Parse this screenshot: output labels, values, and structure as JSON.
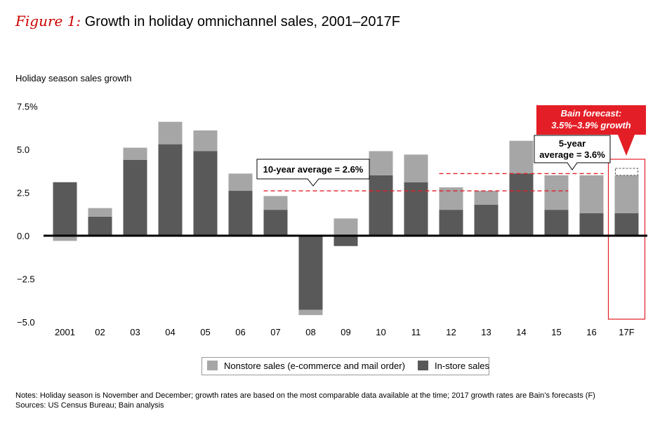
{
  "figure_label": "Figure 1:",
  "title": "Growth in holiday omnichannel sales, 2001–2017F",
  "chart_data": {
    "type": "bar",
    "stacked": true,
    "ylabel": "Holiday season sales growth",
    "ylim": [
      -5.0,
      7.5
    ],
    "yticks": [
      7.5,
      5.0,
      2.5,
      0.0,
      -2.5,
      -5.0
    ],
    "ytick_labels": [
      "7.5%",
      "5.0",
      "2.5",
      "0.0",
      "−2.5",
      "−5.0"
    ],
    "categories": [
      "2001",
      "02",
      "03",
      "04",
      "05",
      "06",
      "07",
      "08",
      "09",
      "10",
      "11",
      "12",
      "13",
      "14",
      "15",
      "16",
      "17F"
    ],
    "series": [
      {
        "name": "In-store sales",
        "color": "#595959",
        "values": [
          3.1,
          1.1,
          4.4,
          5.3,
          4.9,
          2.6,
          1.5,
          -4.3,
          -0.6,
          3.5,
          3.1,
          1.5,
          1.8,
          3.6,
          1.5,
          1.3,
          1.3
        ]
      },
      {
        "name": "Nonstore sales (e-commerce and mail order)",
        "color": "#a6a6a6",
        "values": [
          -0.3,
          0.5,
          0.7,
          1.3,
          1.2,
          1.0,
          0.8,
          -0.3,
          1.0,
          1.4,
          1.6,
          1.3,
          0.8,
          1.9,
          2.0,
          2.2,
          2.2
        ]
      }
    ],
    "forecast_extra": 0.4,
    "averages": [
      {
        "label": "10-year average = 2.6%",
        "value": 2.6,
        "from": "07",
        "to": "15"
      },
      {
        "label_lines": [
          "5-year",
          "average = 3.6%"
        ],
        "value": 3.6,
        "from": "12",
        "to": "16"
      }
    ],
    "forecast_callout": {
      "lines": [
        "Bain forecast:",
        "3.5%–3.9% growth"
      ],
      "color": "#e41e26"
    }
  },
  "legend": [
    "Nonstore sales (e-commerce and mail order)",
    "In-store sales"
  ],
  "notes": "Notes: Holiday season is November and December; growth rates are based on the most comparable data available at the time; 2017 growth rates are Bain’s forecasts (F)",
  "sources": "Sources: US Census Bureau; Bain analysis"
}
